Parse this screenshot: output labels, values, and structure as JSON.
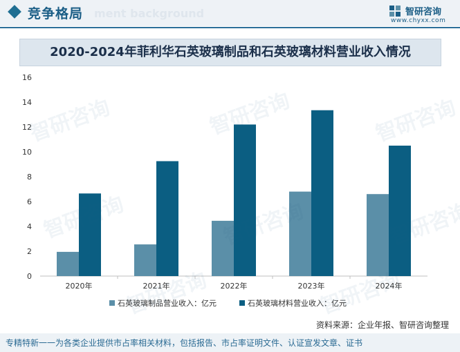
{
  "header": {
    "section_title": "竞争格局",
    "ghost_text": "ment background",
    "logo_name": "智研咨询",
    "logo_url": "www.chyxx.com",
    "logo_icon": "zhiyan-logo-icon"
  },
  "watermark_text": "智研咨询",
  "colors": {
    "accent": "#1b5e86",
    "series1": "#5b8fa8",
    "series2": "#0b5e82",
    "title_bg": "#dde6ee"
  },
  "chart_data": {
    "type": "bar",
    "title": "2020-2024年菲利华石英玻璃制品和石英玻璃材料营业收入情况",
    "categories": [
      "2020年",
      "2021年",
      "2022年",
      "2023年",
      "2024年"
    ],
    "series": [
      {
        "name": "石英玻璃制品营业收入：亿元",
        "values": [
          1.95,
          2.55,
          4.45,
          6.8,
          6.6
        ],
        "color": "#5b8fa8"
      },
      {
        "name": "石英玻璃材料营业收入：亿元",
        "values": [
          6.65,
          9.25,
          12.2,
          13.35,
          10.5
        ],
        "color": "#0b5e82"
      }
    ],
    "ylim": [
      0,
      16
    ],
    "yticks": [
      "0",
      "2",
      "4",
      "6",
      "8",
      "10",
      "12",
      "14",
      "16"
    ],
    "grid": false,
    "legend": "bottom"
  },
  "source": "资料来源：企业年报、智研咨询整理",
  "footer": "专精特新一一为各类企业提供市占率相关材料，包括报告、市占率证明文件、认证宣发文章、证书"
}
